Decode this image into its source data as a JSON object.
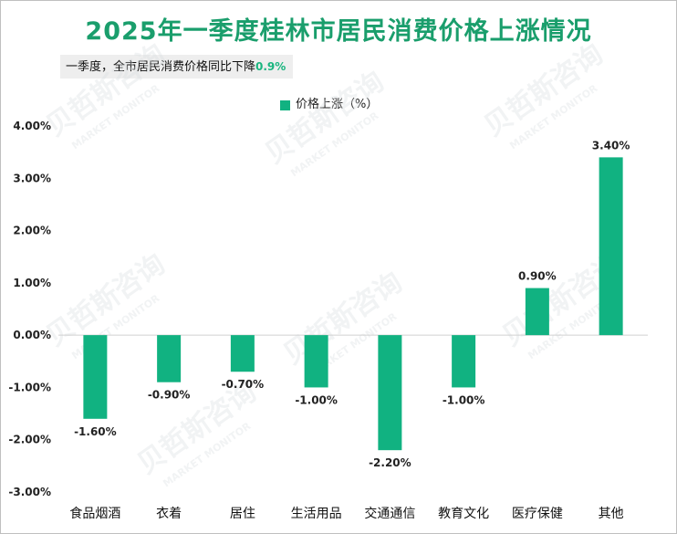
{
  "colors": {
    "bar": "#11b281",
    "title": "#1a9e6c",
    "highlight": "#1ab57f"
  },
  "chart_data": {
    "type": "bar",
    "title": "2025年一季度桂林市居民消费价格上涨情况",
    "subtitle_prefix": "一季度，全市居民消费价格同比下降",
    "subtitle_value": "0.9%",
    "legend": "价格上涨（%）",
    "categories": [
      "食品烟酒",
      "衣着",
      "居住",
      "生活用品",
      "交通通信",
      "教育文化",
      "医疗保健",
      "其他"
    ],
    "values": [
      -1.6,
      -0.9,
      -0.7,
      -1.0,
      -2.2,
      -1.0,
      0.9,
      3.4
    ],
    "value_labels": [
      "-1.60%",
      "-0.90%",
      "-0.70%",
      "-1.00%",
      "-2.20%",
      "-1.00%",
      "0.90%",
      "3.40%"
    ],
    "ylim": [
      -3.0,
      4.0
    ],
    "yticks": [
      4.0,
      3.0,
      2.0,
      1.0,
      0.0,
      -1.0,
      -2.0,
      -3.0
    ],
    "ytick_labels": [
      "4.00%",
      "3.00%",
      "2.00%",
      "1.00%",
      "0.00%",
      "-1.00%",
      "-2.00%",
      "-3.00%"
    ],
    "grid": false
  },
  "watermark": {
    "cn": "贝哲斯咨询",
    "en": "MARKET MONITOR"
  }
}
